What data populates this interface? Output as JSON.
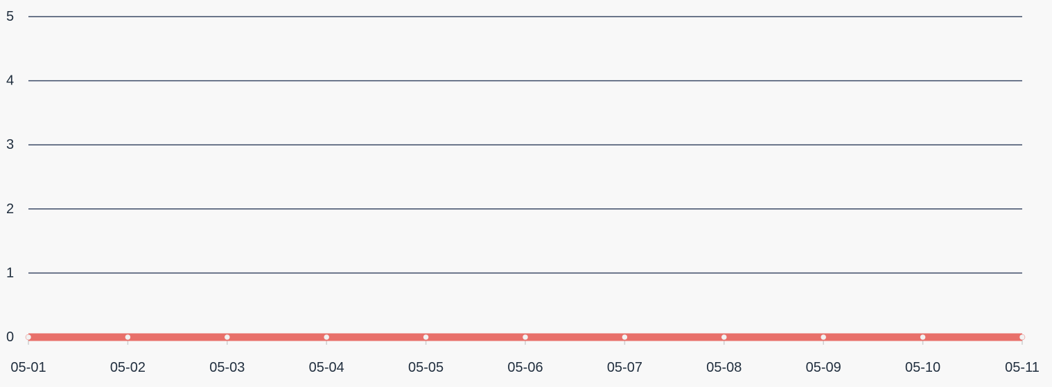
{
  "chart_data": {
    "type": "area",
    "categories": [
      "05-01",
      "05-02",
      "05-03",
      "05-04",
      "05-05",
      "05-06",
      "05-07",
      "05-08",
      "05-09",
      "05-10",
      "05-11"
    ],
    "series": [
      {
        "values": [
          0,
          0,
          0,
          0,
          0,
          0,
          0,
          0,
          0,
          0,
          0
        ],
        "color": "#e8706a"
      }
    ],
    "y_ticks": [
      "0",
      "1",
      "2",
      "3",
      "4",
      "5"
    ],
    "ylim": [
      0,
      5
    ],
    "grid": true,
    "legend": "none",
    "grid_color": "#3b4a66",
    "marker_color": "#f2f2f2"
  }
}
